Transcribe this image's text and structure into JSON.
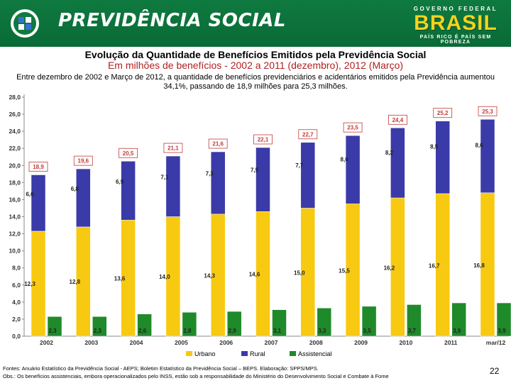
{
  "header": {
    "brand": "PREVIDÊNCIA SOCIAL",
    "gov_top": "GOVERNO FEDERAL",
    "gov_name": "BRASIL",
    "gov_slogan": "PAÍS RICO É PAÍS SEM POBREZA"
  },
  "title": "Evolução da Quantidade de Benefícios Emitidos pela Previdência Social",
  "subtitle": "Em milhões de benefícios - 2002 a 2011 (dezembro), 2012 (Março)",
  "description": "Entre dezembro de 2002 e Março de 2012, a quantidade de benefícios previdenciários e acidentários emitidos pela Previdência aumentou 34,1%, passando de 18,9 milhões para 25,3 milhões.",
  "chart_data": {
    "type": "bar",
    "categories": [
      "2002",
      "2003",
      "2004",
      "2005",
      "2006",
      "2007",
      "2008",
      "2009",
      "2010",
      "2011",
      "mar/12"
    ],
    "series": [
      {
        "name": "Urbano",
        "color": "#f7c910",
        "values": [
          12.3,
          12.8,
          13.6,
          14.0,
          14.3,
          14.6,
          15.0,
          15.5,
          16.2,
          16.7,
          16.8
        ],
        "labels": [
          "12,3",
          "12,8",
          "13,6",
          "14,0",
          "14,3",
          "14,6",
          "15,0",
          "15,5",
          "16,2",
          "16,7",
          "16,8"
        ]
      },
      {
        "name": "Rural",
        "color": "#3a3aa8",
        "values": [
          6.6,
          6.8,
          6.9,
          7.1,
          7.3,
          7.5,
          7.7,
          8.0,
          8.2,
          8.5,
          8.6
        ],
        "labels": [
          "6,6",
          "6,8",
          "6,9",
          "7,1",
          "7,3",
          "7,5",
          "7,7",
          "8,0",
          "8,2",
          "8,5",
          "8,6"
        ]
      },
      {
        "name": "Assistencial",
        "color": "#1f8a2a",
        "values": [
          2.3,
          2.3,
          2.6,
          2.8,
          2.9,
          3.1,
          3.3,
          3.5,
          3.7,
          3.9,
          3.9
        ],
        "labels": [
          "2,3",
          "2,3",
          "2,6",
          "2,8",
          "2,9",
          "3,1",
          "3,3",
          "3,5",
          "3,7",
          "3,9",
          "3,9"
        ]
      }
    ],
    "totals": [
      18.9,
      19.6,
      20.5,
      21.1,
      21.6,
      22.1,
      22.7,
      23.5,
      24.4,
      25.2,
      25.3
    ],
    "total_labels": [
      "18,9",
      "19,6",
      "20,5",
      "21,1",
      "21,6",
      "22,1",
      "22,7",
      "23,5",
      "24,4",
      "25,2",
      "25,3"
    ],
    "y_ticks": [
      "0,0",
      "2,0",
      "4,0",
      "6,0",
      "8,0",
      "10,0",
      "12,0",
      "14,0",
      "16,0",
      "18,0",
      "20,0",
      "22,0",
      "24,0",
      "26,0",
      "28,0"
    ],
    "ylim": [
      0,
      28
    ],
    "legend": "bottom",
    "grid": false
  },
  "footer": {
    "sources": "Fontes: Anuário Estatístico da Previdência Social - AEPS; Boletim Estatístico da Previdência Social – BEPS. Elaboração: SPPS/MPS.",
    "note": "Obs.: Os benefícios assistenciais, embora operacionalizados pelo INSS, estão sob a responsabilidade do Ministério do Desenvolvimento Social e Combate à Fome"
  },
  "page_number": "22"
}
